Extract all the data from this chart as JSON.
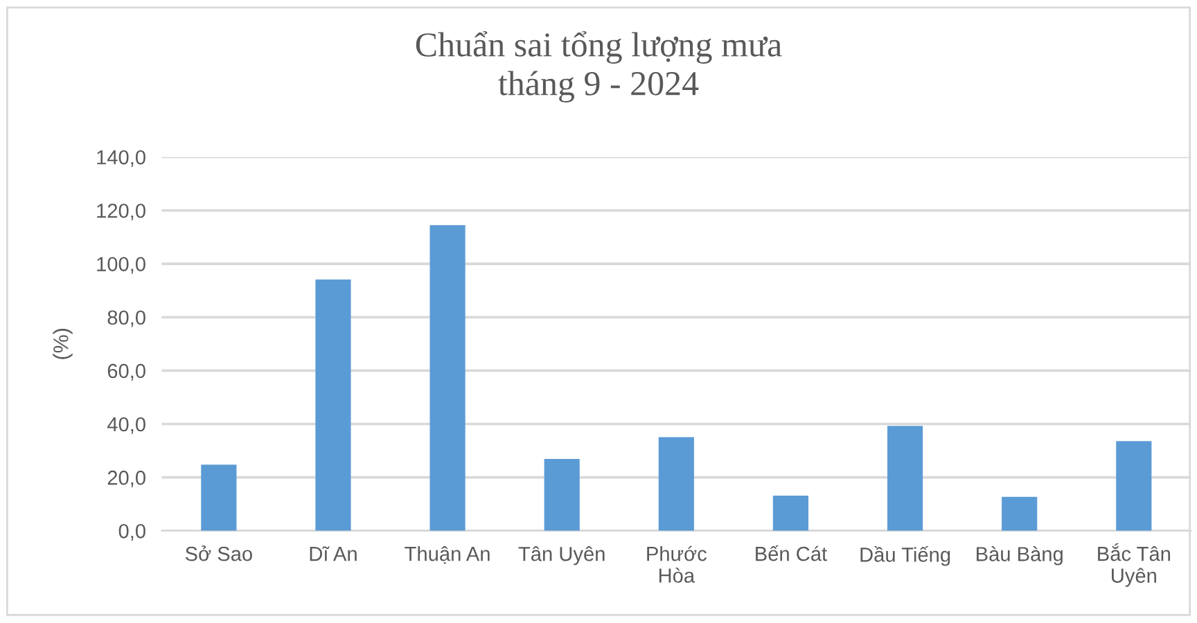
{
  "chart_data": {
    "type": "bar",
    "title": "Chuẩn sai tổng lượng mưa\ntháng 9 - 2024",
    "ylabel": "(%)",
    "categories": [
      "Sở Sao",
      "Dĩ An",
      "Thuận An",
      "Tân Uyên",
      "Phước\nHòa",
      "Bến Cát",
      "Dầu Tiếng",
      "Bàu Bàng",
      "Bắc Tân\nUyên"
    ],
    "values": [
      24.8,
      94.1,
      114.5,
      26.9,
      35.1,
      13.2,
      39.3,
      12.7,
      33.6
    ],
    "color": "#5b9bd5",
    "ylim": [
      0,
      140
    ],
    "yticks": [
      {
        "value": 0,
        "label": "0,0"
      },
      {
        "value": 20,
        "label": "20,0"
      },
      {
        "value": 40,
        "label": "40,0"
      },
      {
        "value": 60,
        "label": "60,0"
      },
      {
        "value": 80,
        "label": "80,0"
      },
      {
        "value": 100,
        "label": "100,0"
      },
      {
        "value": 120,
        "label": "120,0"
      },
      {
        "value": 140,
        "label": "140,0"
      }
    ],
    "grid": "y",
    "legend": false
  }
}
